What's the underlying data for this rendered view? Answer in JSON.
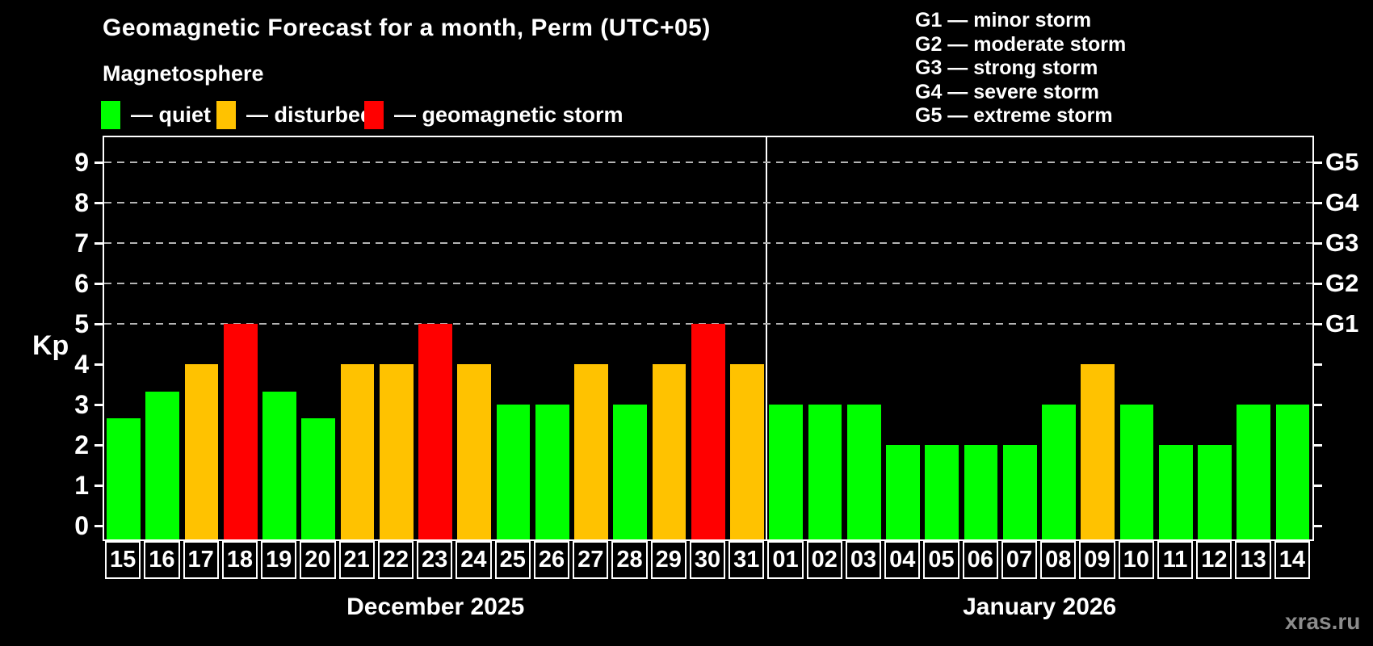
{
  "header": {
    "title": "Geomagnetic Forecast for a month, Perm (UTC+05)",
    "subtitle": "Magnetosphere"
  },
  "legend": {
    "items": [
      {
        "name": "quiet",
        "label": "— quiet",
        "color": "#00ff00"
      },
      {
        "name": "disturbed",
        "label": "— disturbed",
        "color": "#ffc200"
      },
      {
        "name": "storm",
        "label": "— geomagnetic storm",
        "color": "#ff0000"
      }
    ]
  },
  "g_legend": [
    "G1 — minor storm",
    "G2 — moderate storm",
    "G3 — strong storm",
    "G4 — severe storm",
    "G5 — extreme storm"
  ],
  "watermark": "xras.ru",
  "chart_data": {
    "type": "bar",
    "title": "Geomagnetic Forecast for a month, Perm (UTC+05)",
    "ylabel": "Kp",
    "ylim": [
      0,
      9
    ],
    "y_ticks": [
      0,
      1,
      2,
      3,
      4,
      5,
      6,
      7,
      8,
      9
    ],
    "gridlines": [
      5,
      6,
      7,
      8,
      9
    ],
    "grid": "dashed-horizontal-on-storm-levels",
    "legend_position": "top",
    "right_axis_labels": [
      {
        "kp": 5,
        "label": "G1"
      },
      {
        "kp": 6,
        "label": "G2"
      },
      {
        "kp": 7,
        "label": "G3"
      },
      {
        "kp": 8,
        "label": "G4"
      },
      {
        "kp": 9,
        "label": "G5"
      }
    ],
    "status_colors": {
      "quiet": "#00ff00",
      "disturbed": "#ffc200",
      "storm": "#ff0000"
    },
    "groups": [
      {
        "month": "December 2025",
        "days": [
          {
            "day": "15",
            "kp": 2.67,
            "status": "quiet"
          },
          {
            "day": "16",
            "kp": 3.33,
            "status": "quiet"
          },
          {
            "day": "17",
            "kp": 4,
            "status": "disturbed"
          },
          {
            "day": "18",
            "kp": 5,
            "status": "storm"
          },
          {
            "day": "19",
            "kp": 3.33,
            "status": "quiet"
          },
          {
            "day": "20",
            "kp": 2.67,
            "status": "quiet"
          },
          {
            "day": "21",
            "kp": 4,
            "status": "disturbed"
          },
          {
            "day": "22",
            "kp": 4,
            "status": "disturbed"
          },
          {
            "day": "23",
            "kp": 5,
            "status": "storm"
          },
          {
            "day": "24",
            "kp": 4,
            "status": "disturbed"
          },
          {
            "day": "25",
            "kp": 3,
            "status": "quiet"
          },
          {
            "day": "26",
            "kp": 3,
            "status": "quiet"
          },
          {
            "day": "27",
            "kp": 4,
            "status": "disturbed"
          },
          {
            "day": "28",
            "kp": 3,
            "status": "quiet"
          },
          {
            "day": "29",
            "kp": 4,
            "status": "disturbed"
          },
          {
            "day": "30",
            "kp": 5,
            "status": "storm"
          },
          {
            "day": "31",
            "kp": 4,
            "status": "disturbed"
          }
        ]
      },
      {
        "month": "January 2026",
        "days": [
          {
            "day": "01",
            "kp": 3,
            "status": "quiet"
          },
          {
            "day": "02",
            "kp": 3,
            "status": "quiet"
          },
          {
            "day": "03",
            "kp": 3,
            "status": "quiet"
          },
          {
            "day": "04",
            "kp": 2,
            "status": "quiet"
          },
          {
            "day": "05",
            "kp": 2,
            "status": "quiet"
          },
          {
            "day": "06",
            "kp": 2,
            "status": "quiet"
          },
          {
            "day": "07",
            "kp": 2,
            "status": "quiet"
          },
          {
            "day": "08",
            "kp": 3,
            "status": "quiet"
          },
          {
            "day": "09",
            "kp": 4,
            "status": "disturbed"
          },
          {
            "day": "10",
            "kp": 3,
            "status": "quiet"
          },
          {
            "day": "11",
            "kp": 2,
            "status": "quiet"
          },
          {
            "day": "12",
            "kp": 2,
            "status": "quiet"
          },
          {
            "day": "13",
            "kp": 3,
            "status": "quiet"
          },
          {
            "day": "14",
            "kp": 3,
            "status": "quiet"
          }
        ]
      }
    ]
  }
}
